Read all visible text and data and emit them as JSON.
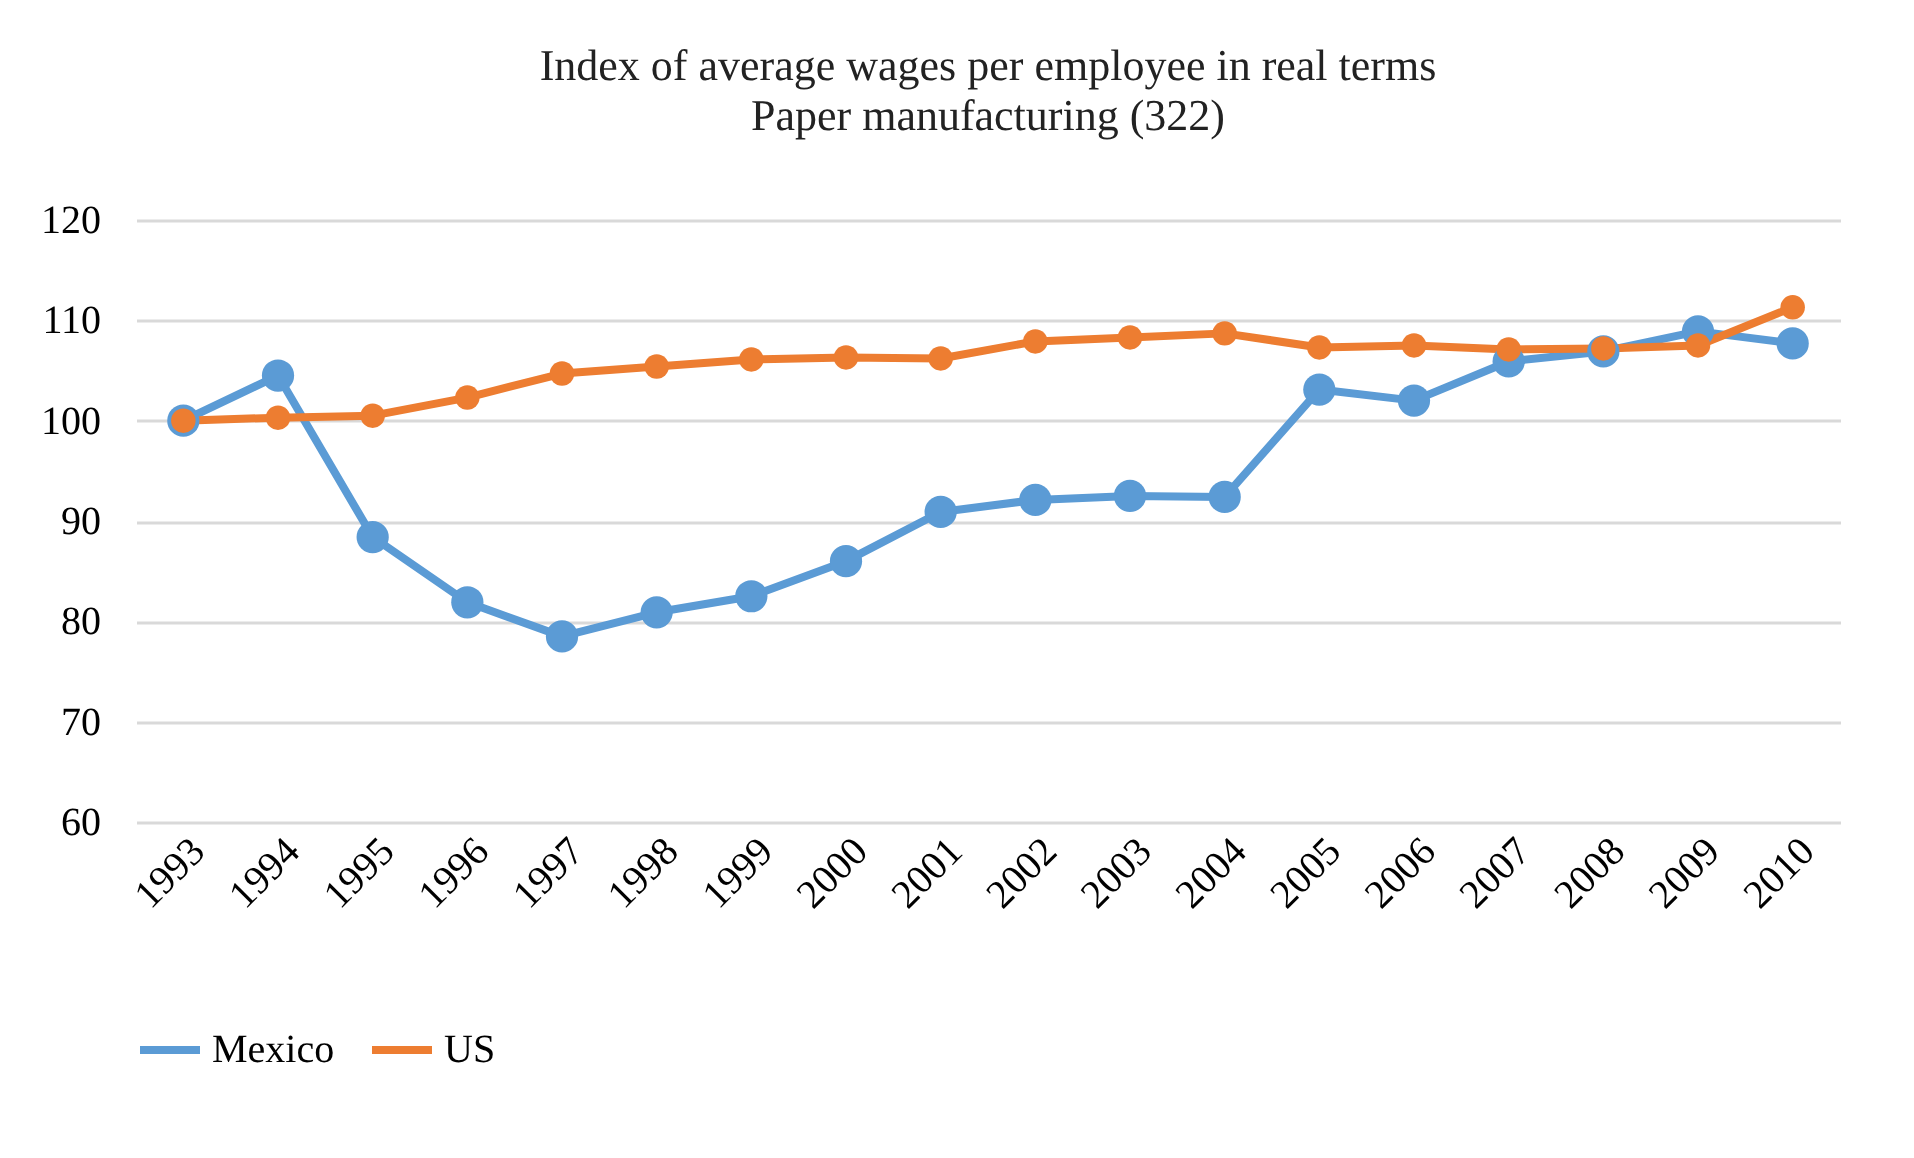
{
  "chart_data": {
    "type": "line",
    "title": "Index of average wages per employee in real terms",
    "subtitle": "Paper manufacturing (322)",
    "categories": [
      "1993",
      "1994",
      "1995",
      "1996",
      "1997",
      "1998",
      "1999",
      "2000",
      "2001",
      "2002",
      "2003",
      "2004",
      "2005",
      "2006",
      "2007",
      "2008",
      "2009",
      "2010"
    ],
    "series": [
      {
        "name": "Mexico",
        "color": "#5b9bd5",
        "values": [
          100,
          104.5,
          88.4,
          81.9,
          78.5,
          80.9,
          82.5,
          86.0,
          90.9,
          92.1,
          92.5,
          92.4,
          103.1,
          102.0,
          105.9,
          106.9,
          108.9,
          107.7
        ]
      },
      {
        "name": "US",
        "color": "#ed7d31",
        "values": [
          100,
          100.3,
          100.5,
          102.3,
          104.7,
          105.4,
          106.1,
          106.3,
          106.2,
          107.9,
          108.3,
          108.7,
          107.3,
          107.5,
          107.1,
          107.2,
          107.5,
          111.3
        ]
      }
    ],
    "ylim": [
      60,
      120
    ],
    "yticks": [
      60,
      70,
      80,
      90,
      100,
      110,
      120
    ],
    "grid": "y",
    "legend": "bottom",
    "marker": "circle",
    "line_style": "solid"
  }
}
